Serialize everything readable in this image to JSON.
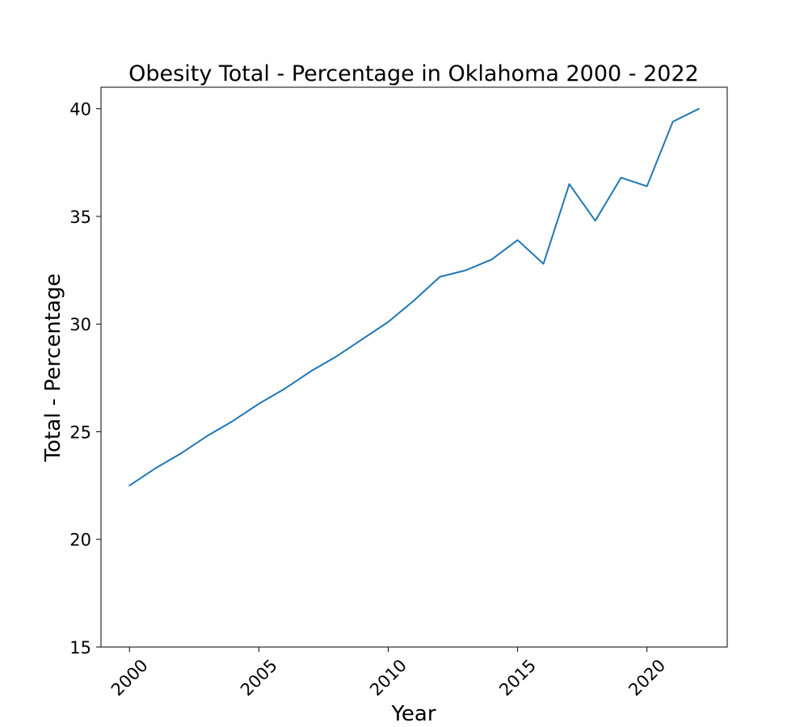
{
  "chart_data": {
    "type": "line",
    "title": "Obesity Total - Percentage in Oklahoma 2000 - 2022",
    "xlabel": "Year",
    "ylabel": "Total - Percentage",
    "xlim": [
      1998.9,
      2023.1
    ],
    "ylim": [
      15,
      41
    ],
    "xticks": [
      2000,
      2005,
      2010,
      2015,
      2020
    ],
    "yticks": [
      15,
      20,
      25,
      30,
      35,
      40
    ],
    "grid": false,
    "series": [
      {
        "color": "#1f77b4",
        "x": [
          2000,
          2001,
          2002,
          2003,
          2004,
          2005,
          2006,
          2007,
          2008,
          2009,
          2010,
          2011,
          2012,
          2013,
          2014,
          2015,
          2016,
          2017,
          2018,
          2019,
          2020,
          2021,
          2022
        ],
        "y": [
          22.5,
          23.3,
          24.0,
          24.8,
          25.5,
          26.3,
          27.0,
          27.8,
          28.5,
          29.3,
          30.1,
          31.1,
          32.2,
          32.5,
          33.0,
          33.9,
          32.8,
          36.5,
          34.8,
          36.8,
          36.4,
          39.4,
          40.0
        ]
      }
    ]
  }
}
